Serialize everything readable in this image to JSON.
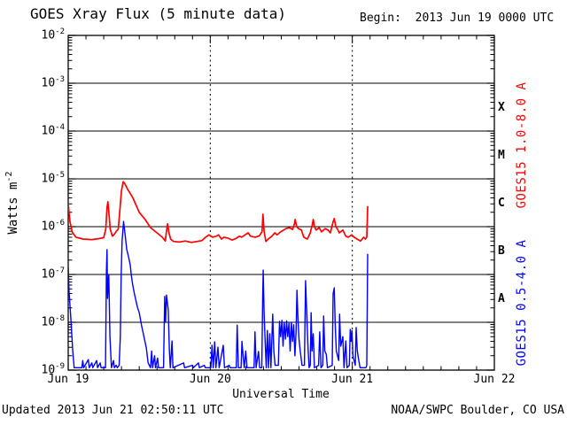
{
  "title": "GOES Xray Flux (5 minute data)",
  "begin_label": "Begin:  2013 Jun 19 0000 UTC",
  "footer": {
    "updated": "Updated 2013 Jun 21 02:50:11 UTC",
    "source": "NOAA/SWPC Boulder, CO USA"
  },
  "colors": {
    "long_channel": "#ff0000",
    "short_channel": "#0000ff",
    "axis": "#000000",
    "background": "#ffffff"
  },
  "chart_data": {
    "type": "line",
    "title": "GOES Xray Flux (5 minute data)",
    "xlabel": "Universal Time",
    "ylabel_base": "Watts m",
    "ylabel_exp": "-2",
    "x_axis": {
      "start": "2013 Jun 19 0000 UTC",
      "span_hours": 72,
      "tick_hours": [
        0,
        24,
        48,
        72
      ],
      "tick_labels": [
        "Jun 19",
        "Jun 20",
        "Jun 21",
        "Jun 22"
      ],
      "minor_tick_step_hours": 3,
      "dotted_gridline_hours": [
        24,
        48
      ]
    },
    "y_axis": {
      "scale": "log",
      "tick_base": "10",
      "exponents": [
        -2,
        -3,
        -4,
        -5,
        -6,
        -7,
        -8,
        -9
      ],
      "ylim_log": [
        -9,
        -2
      ]
    },
    "flare_classes": [
      {
        "label": "X",
        "log_center": -3.5
      },
      {
        "label": "M",
        "log_center": -4.5
      },
      {
        "label": "C",
        "log_center": -5.5
      },
      {
        "label": "B",
        "log_center": -6.5
      },
      {
        "label": "A",
        "log_center": -7.5
      }
    ],
    "series": [
      {
        "name": "GOES15 1.0-8.0 A",
        "color": "#ff0000",
        "width": 1.7,
        "points": [
          [
            0.0,
            -5.52
          ],
          [
            0.3,
            -5.9
          ],
          [
            0.7,
            -6.12
          ],
          [
            1.3,
            -6.22
          ],
          [
            2.5,
            -6.26
          ],
          [
            4.0,
            -6.27
          ],
          [
            5.2,
            -6.25
          ],
          [
            6.0,
            -6.23
          ],
          [
            6.35,
            -6.05
          ],
          [
            6.55,
            -5.6
          ],
          [
            6.7,
            -5.48
          ],
          [
            6.9,
            -5.75
          ],
          [
            7.1,
            -6.05
          ],
          [
            7.45,
            -6.2
          ],
          [
            7.8,
            -6.16
          ],
          [
            8.1,
            -6.1
          ],
          [
            8.45,
            -6.05
          ],
          [
            8.7,
            -5.7
          ],
          [
            9.0,
            -5.25
          ],
          [
            9.3,
            -5.06
          ],
          [
            9.55,
            -5.1
          ],
          [
            10.0,
            -5.21
          ],
          [
            10.9,
            -5.39
          ],
          [
            12.0,
            -5.7
          ],
          [
            13.0,
            -5.85
          ],
          [
            13.9,
            -6.02
          ],
          [
            15.0,
            -6.13
          ],
          [
            15.9,
            -6.22
          ],
          [
            16.4,
            -6.3
          ],
          [
            16.6,
            -6.1
          ],
          [
            16.8,
            -5.94
          ],
          [
            17.0,
            -6.12
          ],
          [
            17.3,
            -6.26
          ],
          [
            17.8,
            -6.31
          ],
          [
            18.8,
            -6.32
          ],
          [
            19.8,
            -6.3
          ],
          [
            20.8,
            -6.33
          ],
          [
            21.8,
            -6.31
          ],
          [
            22.6,
            -6.29
          ],
          [
            23.2,
            -6.22
          ],
          [
            23.8,
            -6.17
          ],
          [
            24.4,
            -6.22
          ],
          [
            25.0,
            -6.2
          ],
          [
            25.4,
            -6.17
          ],
          [
            25.9,
            -6.26
          ],
          [
            26.3,
            -6.22
          ],
          [
            27.0,
            -6.24
          ],
          [
            27.7,
            -6.28
          ],
          [
            28.3,
            -6.25
          ],
          [
            28.9,
            -6.2
          ],
          [
            29.3,
            -6.22
          ],
          [
            29.9,
            -6.17
          ],
          [
            30.4,
            -6.13
          ],
          [
            30.8,
            -6.2
          ],
          [
            31.6,
            -6.22
          ],
          [
            32.3,
            -6.19
          ],
          [
            32.75,
            -6.1
          ],
          [
            32.9,
            -5.74
          ],
          [
            33.1,
            -6.1
          ],
          [
            33.4,
            -6.31
          ],
          [
            33.8,
            -6.26
          ],
          [
            34.4,
            -6.2
          ],
          [
            34.9,
            -6.13
          ],
          [
            35.3,
            -6.17
          ],
          [
            35.9,
            -6.11
          ],
          [
            36.4,
            -6.07
          ],
          [
            36.8,
            -6.04
          ],
          [
            37.4,
            -6.02
          ],
          [
            37.9,
            -6.06
          ],
          [
            38.2,
            -5.95
          ],
          [
            38.35,
            -5.85
          ],
          [
            38.6,
            -6.0
          ],
          [
            38.9,
            -6.04
          ],
          [
            39.4,
            -6.07
          ],
          [
            39.8,
            -6.22
          ],
          [
            40.4,
            -6.26
          ],
          [
            40.9,
            -6.13
          ],
          [
            41.25,
            -5.95
          ],
          [
            41.4,
            -5.85
          ],
          [
            41.6,
            -6.0
          ],
          [
            41.9,
            -6.07
          ],
          [
            42.4,
            -6.02
          ],
          [
            42.8,
            -6.11
          ],
          [
            43.4,
            -6.04
          ],
          [
            43.9,
            -6.07
          ],
          [
            44.3,
            -6.13
          ],
          [
            44.75,
            -5.9
          ],
          [
            44.95,
            -5.83
          ],
          [
            45.2,
            -6.0
          ],
          [
            45.5,
            -6.05
          ],
          [
            45.8,
            -6.13
          ],
          [
            46.4,
            -6.07
          ],
          [
            46.9,
            -6.2
          ],
          [
            47.3,
            -6.22
          ],
          [
            47.9,
            -6.17
          ],
          [
            48.3,
            -6.22
          ],
          [
            48.8,
            -6.26
          ],
          [
            49.4,
            -6.3
          ],
          [
            49.9,
            -6.22
          ],
          [
            50.2,
            -6.26
          ],
          [
            50.45,
            -6.22
          ],
          [
            50.6,
            -5.57
          ]
        ]
      },
      {
        "name": "GOES15 0.5-4.0 A",
        "color": "#0000ff",
        "width": 1.4,
        "points": [
          [
            0.0,
            -6.85
          ],
          [
            0.15,
            -7.37
          ],
          [
            0.45,
            -7.93
          ],
          [
            0.75,
            -8.57
          ],
          [
            1.0,
            -8.95
          ],
          [
            2.3,
            -8.95
          ],
          [
            2.45,
            -8.8
          ],
          [
            2.6,
            -8.95
          ],
          [
            3.4,
            -8.78
          ],
          [
            3.55,
            -8.95
          ],
          [
            4.0,
            -8.85
          ],
          [
            4.15,
            -8.95
          ],
          [
            4.8,
            -8.8
          ],
          [
            4.95,
            -8.95
          ],
          [
            5.4,
            -8.85
          ],
          [
            5.55,
            -8.95
          ],
          [
            6.3,
            -8.95
          ],
          [
            6.45,
            -6.95
          ],
          [
            6.55,
            -6.48
          ],
          [
            6.65,
            -7.5
          ],
          [
            6.85,
            -7.0
          ],
          [
            7.05,
            -8.3
          ],
          [
            7.3,
            -8.95
          ],
          [
            7.65,
            -8.8
          ],
          [
            7.8,
            -8.95
          ],
          [
            8.1,
            -8.9
          ],
          [
            8.3,
            -8.95
          ],
          [
            8.6,
            -8.9
          ],
          [
            8.8,
            -8.3
          ],
          [
            8.95,
            -7.0
          ],
          [
            9.1,
            -6.3
          ],
          [
            9.35,
            -5.89
          ],
          [
            9.6,
            -6.15
          ],
          [
            9.9,
            -6.48
          ],
          [
            10.2,
            -6.63
          ],
          [
            10.5,
            -6.81
          ],
          [
            10.65,
            -7.0
          ],
          [
            10.9,
            -7.22
          ],
          [
            11.2,
            -7.41
          ],
          [
            11.7,
            -7.69
          ],
          [
            12.0,
            -7.8
          ],
          [
            12.4,
            -8.07
          ],
          [
            12.7,
            -8.24
          ],
          [
            13.2,
            -8.54
          ],
          [
            13.5,
            -8.85
          ],
          [
            13.9,
            -8.95
          ],
          [
            14.1,
            -8.6
          ],
          [
            14.25,
            -8.95
          ],
          [
            14.6,
            -8.7
          ],
          [
            14.75,
            -8.95
          ],
          [
            15.1,
            -8.75
          ],
          [
            15.25,
            -8.95
          ],
          [
            16.1,
            -8.95
          ],
          [
            16.3,
            -7.46
          ],
          [
            16.45,
            -8.0
          ],
          [
            16.6,
            -7.43
          ],
          [
            16.9,
            -7.74
          ],
          [
            17.1,
            -8.6
          ],
          [
            17.25,
            -8.95
          ],
          [
            17.55,
            -8.39
          ],
          [
            17.7,
            -8.95
          ],
          [
            19.5,
            -8.85
          ],
          [
            19.65,
            -8.95
          ],
          [
            21.0,
            -8.9
          ],
          [
            21.15,
            -8.95
          ],
          [
            22.0,
            -8.85
          ],
          [
            22.15,
            -8.95
          ],
          [
            23.0,
            -8.9
          ],
          [
            23.15,
            -8.95
          ],
          [
            24.1,
            -8.95
          ],
          [
            24.3,
            -8.48
          ],
          [
            24.5,
            -8.95
          ],
          [
            24.75,
            -8.41
          ],
          [
            24.95,
            -8.95
          ],
          [
            25.3,
            -8.52
          ],
          [
            25.5,
            -8.95
          ],
          [
            26.2,
            -8.48
          ],
          [
            26.4,
            -8.95
          ],
          [
            27.2,
            -8.9
          ],
          [
            27.35,
            -8.95
          ],
          [
            28.4,
            -8.95
          ],
          [
            28.55,
            -8.06
          ],
          [
            28.75,
            -8.95
          ],
          [
            29.2,
            -8.95
          ],
          [
            29.35,
            -8.4
          ],
          [
            29.55,
            -8.7
          ],
          [
            29.75,
            -8.95
          ],
          [
            30.0,
            -8.6
          ],
          [
            30.2,
            -8.95
          ],
          [
            31.4,
            -8.95
          ],
          [
            31.55,
            -8.2
          ],
          [
            31.75,
            -8.95
          ],
          [
            32.15,
            -8.61
          ],
          [
            32.35,
            -8.95
          ],
          [
            32.7,
            -8.95
          ],
          [
            32.85,
            -7.5
          ],
          [
            32.95,
            -6.91
          ],
          [
            33.1,
            -7.8
          ],
          [
            33.3,
            -8.5
          ],
          [
            33.45,
            -8.95
          ],
          [
            33.65,
            -8.17
          ],
          [
            33.85,
            -8.95
          ],
          [
            34.05,
            -8.24
          ],
          [
            34.25,
            -8.95
          ],
          [
            34.55,
            -7.83
          ],
          [
            34.75,
            -8.6
          ],
          [
            34.95,
            -8.9
          ],
          [
            35.5,
            -8.9
          ],
          [
            35.7,
            -7.98
          ],
          [
            35.9,
            -8.3
          ],
          [
            36.1,
            -7.96
          ],
          [
            36.3,
            -8.5
          ],
          [
            36.5,
            -8.0
          ],
          [
            36.7,
            -8.35
          ],
          [
            36.9,
            -7.97
          ],
          [
            37.1,
            -8.3
          ],
          [
            37.3,
            -8.02
          ],
          [
            37.5,
            -8.6
          ],
          [
            37.7,
            -8.0
          ],
          [
            37.9,
            -8.4
          ],
          [
            38.1,
            -8.05
          ],
          [
            38.3,
            -8.7
          ],
          [
            38.5,
            -8.2
          ],
          [
            38.65,
            -7.33
          ],
          [
            38.8,
            -7.87
          ],
          [
            39.0,
            -8.35
          ],
          [
            39.2,
            -8.6
          ],
          [
            39.5,
            -8.9
          ],
          [
            39.9,
            -8.9
          ],
          [
            40.1,
            -7.13
          ],
          [
            40.3,
            -7.78
          ],
          [
            40.5,
            -8.5
          ],
          [
            40.7,
            -8.95
          ],
          [
            40.9,
            -8.9
          ],
          [
            41.05,
            -7.8
          ],
          [
            41.2,
            -8.6
          ],
          [
            41.4,
            -8.24
          ],
          [
            41.6,
            -8.95
          ],
          [
            42.3,
            -8.9
          ],
          [
            42.5,
            -8.2
          ],
          [
            42.7,
            -8.95
          ],
          [
            43.0,
            -8.9
          ],
          [
            43.15,
            -7.87
          ],
          [
            43.35,
            -8.6
          ],
          [
            43.6,
            -8.67
          ],
          [
            43.8,
            -8.95
          ],
          [
            44.6,
            -8.9
          ],
          [
            44.75,
            -7.4
          ],
          [
            44.95,
            -7.28
          ],
          [
            45.1,
            -8.0
          ],
          [
            45.3,
            -8.6
          ],
          [
            45.7,
            -8.8
          ],
          [
            45.85,
            -7.83
          ],
          [
            46.05,
            -8.5
          ],
          [
            46.4,
            -8.3
          ],
          [
            46.6,
            -8.95
          ],
          [
            46.9,
            -8.39
          ],
          [
            47.1,
            -8.95
          ],
          [
            47.5,
            -8.9
          ],
          [
            47.65,
            -8.15
          ],
          [
            47.8,
            -8.4
          ],
          [
            47.95,
            -8.17
          ],
          [
            48.1,
            -8.7
          ],
          [
            48.5,
            -8.9
          ],
          [
            48.65,
            -8.11
          ],
          [
            48.85,
            -8.6
          ],
          [
            49.1,
            -8.8
          ],
          [
            49.3,
            -8.95
          ],
          [
            50.3,
            -8.95
          ],
          [
            50.45,
            -8.9
          ],
          [
            50.6,
            -6.57
          ]
        ]
      }
    ]
  }
}
